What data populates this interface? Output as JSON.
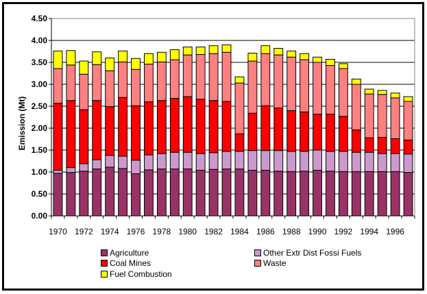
{
  "chart_data": {
    "type": "bar",
    "stacked": true,
    "title": "",
    "xlabel": "",
    "ylabel": "Emission (Mt)",
    "ylim": [
      0,
      4.5
    ],
    "yticks": [
      "0.00",
      "0.50",
      "1.00",
      "1.50",
      "2.00",
      "2.50",
      "3.00",
      "3.50",
      "4.00",
      "4.50"
    ],
    "grid": true,
    "legend_position": "bottom",
    "categories": [
      "1970",
      "1971",
      "1972",
      "1973",
      "1974",
      "1975",
      "1976",
      "1977",
      "1978",
      "1979",
      "1980",
      "1981",
      "1982",
      "1983",
      "1984",
      "1985",
      "1986",
      "1987",
      "1988",
      "1989",
      "1990",
      "1991",
      "1992",
      "1993",
      "1994",
      "1995",
      "1996",
      "1997"
    ],
    "xtick_labels": [
      "1970",
      "1972",
      "1974",
      "1976",
      "1978",
      "1980",
      "1982",
      "1984",
      "1986",
      "1988",
      "1990",
      "1992",
      "1994",
      "1996"
    ],
    "series": [
      {
        "name": "Agriculture",
        "color": "#993366",
        "values": [
          0.97,
          0.99,
          1.02,
          1.07,
          1.11,
          1.08,
          0.96,
          1.05,
          1.07,
          1.07,
          1.07,
          1.04,
          1.06,
          1.07,
          1.07,
          1.04,
          1.04,
          1.02,
          1.01,
          1.02,
          1.04,
          1.02,
          1.01,
          1.01,
          1.01,
          1.01,
          1.01,
          0.99
        ]
      },
      {
        "name": "Other Extr Dist Fossil Fuels",
        "color": "#CC99CC",
        "values": [
          0.07,
          0.11,
          0.17,
          0.21,
          0.27,
          0.28,
          0.31,
          0.34,
          0.35,
          0.38,
          0.38,
          0.38,
          0.38,
          0.4,
          0.4,
          0.45,
          0.45,
          0.47,
          0.46,
          0.45,
          0.46,
          0.45,
          0.46,
          0.44,
          0.44,
          0.41,
          0.41,
          0.42
        ]
      },
      {
        "name": "Coal Mines",
        "color": "#FF0000",
        "values": [
          1.53,
          1.53,
          1.23,
          1.35,
          1.11,
          1.34,
          1.24,
          1.21,
          1.21,
          1.23,
          1.27,
          1.24,
          1.19,
          1.14,
          0.4,
          0.85,
          1.02,
          0.97,
          0.93,
          0.9,
          0.82,
          0.85,
          0.8,
          0.51,
          0.33,
          0.37,
          0.34,
          0.32
        ]
      },
      {
        "name": "Waste",
        "color": "#FF8080",
        "values": [
          0.79,
          0.81,
          0.81,
          0.82,
          0.82,
          0.81,
          0.83,
          0.86,
          0.88,
          0.88,
          0.95,
          1.02,
          1.07,
          1.12,
          1.16,
          1.19,
          1.19,
          1.21,
          1.22,
          1.19,
          1.18,
          1.11,
          1.09,
          1.04,
          1.0,
          0.98,
          0.93,
          0.88
        ]
      },
      {
        "name": "Fuel Combustion",
        "color": "#FFFF00",
        "values": [
          0.4,
          0.33,
          0.3,
          0.29,
          0.29,
          0.25,
          0.25,
          0.24,
          0.22,
          0.23,
          0.18,
          0.17,
          0.18,
          0.17,
          0.14,
          0.18,
          0.18,
          0.15,
          0.14,
          0.14,
          0.12,
          0.14,
          0.11,
          0.12,
          0.11,
          0.09,
          0.11,
          0.11
        ]
      }
    ],
    "legend": [
      {
        "label": "Agriculture",
        "color": "#993366"
      },
      {
        "label": "Other Extr Dist Fossi Fuels",
        "color": "#CC99CC"
      },
      {
        "label": "Coal Mines",
        "color": "#FF0000"
      },
      {
        "label": "Waste",
        "color": "#FF8080"
      },
      {
        "label": "Fuel Combustion",
        "color": "#FFFF00"
      }
    ]
  }
}
